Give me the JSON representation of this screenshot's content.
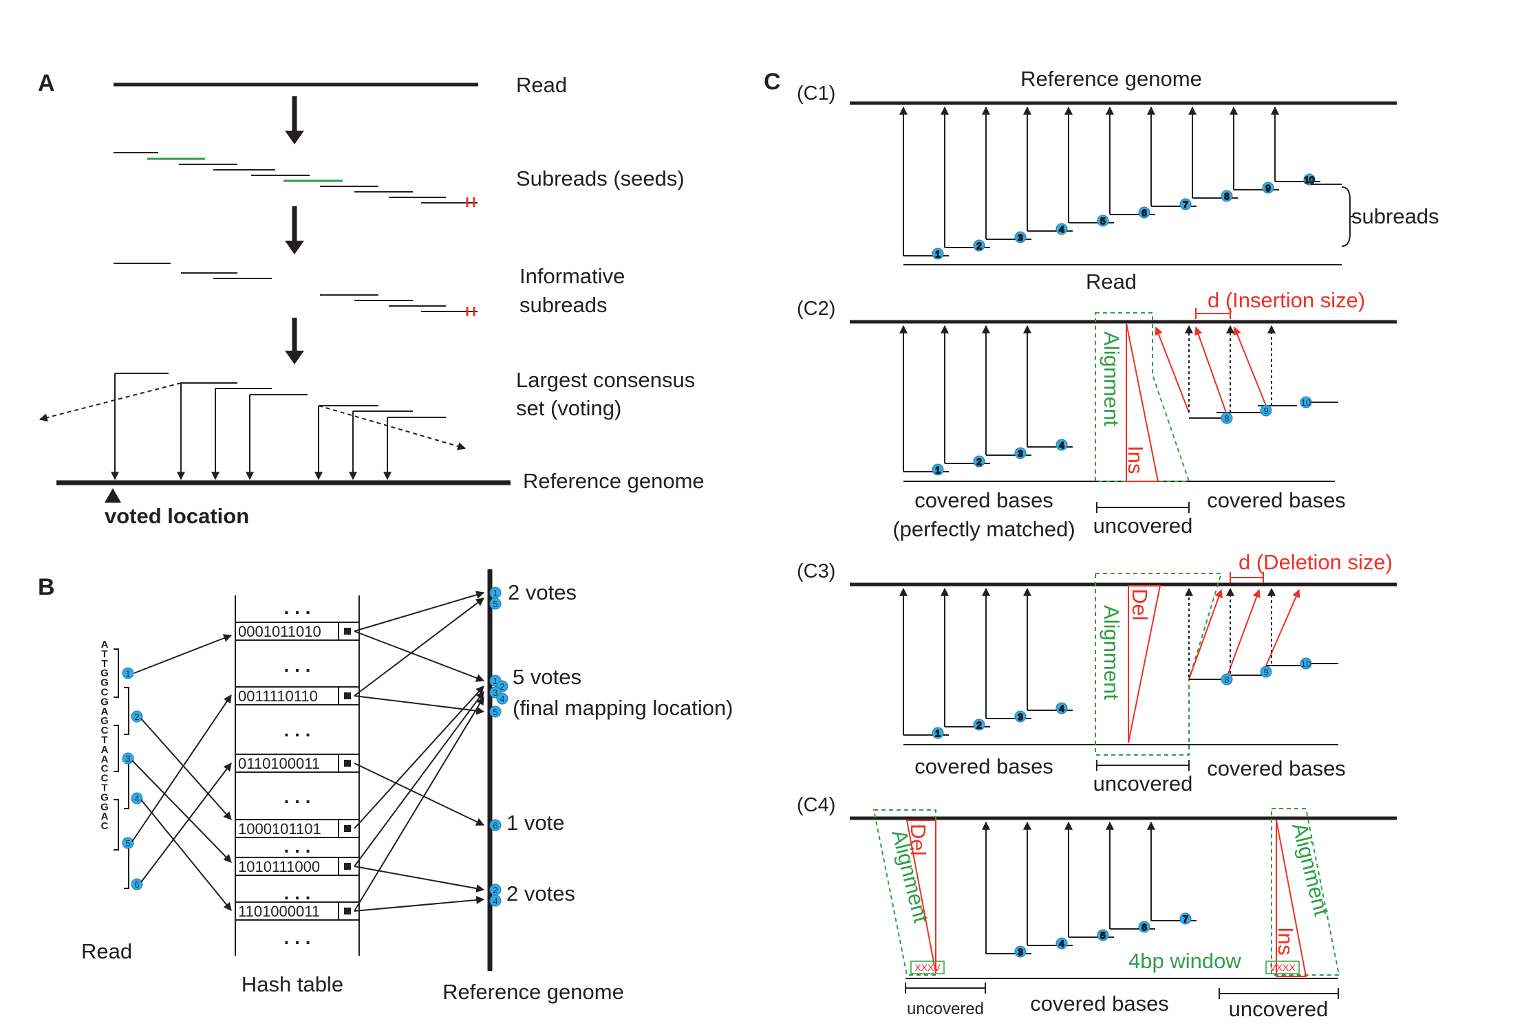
{
  "panel_labels": {
    "a": "A",
    "b": "B",
    "c": "C"
  },
  "panel_a": {
    "read": "Read",
    "subreads_seeds": "Subreads (seeds)",
    "informative_1": "Informative",
    "informative_2": "subreads",
    "consensus_1": "Largest consensus",
    "consensus_2": "set (voting)",
    "reference_genome": "Reference genome",
    "voted_location": "voted location"
  },
  "panel_b": {
    "read_letters": [
      "A",
      "T",
      "T",
      "G",
      "G",
      "C",
      "G",
      "A",
      "G",
      "C",
      "T",
      "A",
      "A",
      "C",
      "C",
      "T",
      "G",
      "G",
      "A",
      "C"
    ],
    "read_label": "Read",
    "hash_table_label": "Hash table",
    "reference_label": "Reference genome",
    "ellipsis": ". . .",
    "codes": [
      "0001011010",
      "0011110110",
      "0110100011",
      "1000101101",
      "1010111000",
      "1101000011"
    ],
    "vote_2a": "2 votes",
    "vote_5": "5 votes",
    "vote_5_sub": "(final mapping location)",
    "vote_1": "1 vote",
    "vote_2b": "2 votes",
    "subread_numbers": [
      "1",
      "2",
      "3",
      "4",
      "5",
      "6"
    ]
  },
  "panel_c": {
    "c1": "(C1)",
    "c2": "(C2)",
    "c3": "(C3)",
    "c4": "(C4)",
    "reference_genome": "Reference genome",
    "read": "Read",
    "subreads": "subreads",
    "alignment": "Alignment",
    "ins": "Ins",
    "del": "Del",
    "insertion_size": "d (Insertion size)",
    "deletion_size": "d (Deletion size)",
    "covered_bases": "covered bases",
    "perfectly_matched": "(perfectly matched)",
    "uncovered": "uncovered",
    "window": "4bp window",
    "window_marks_left": "XXXV",
    "window_marks_right": "VXXX",
    "numbers": [
      "1",
      "2",
      "3",
      "4",
      "5",
      "6",
      "7",
      "8",
      "9",
      "10"
    ]
  },
  "colors": {
    "black": "#231f20",
    "red": "#ee3124",
    "green": "#2e9e46",
    "blue": "#35a9e1"
  }
}
